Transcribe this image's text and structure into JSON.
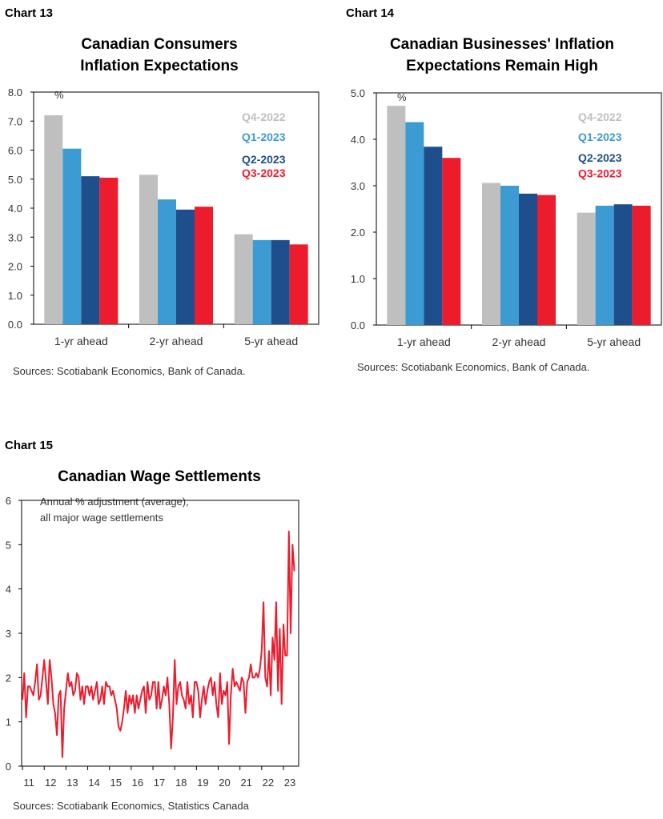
{
  "chart_data": [
    {
      "type": "bar",
      "chart_number": "Chart 13",
      "title_lines": [
        "Canadian Consumers",
        "Inflation Expectations"
      ],
      "unit": "%",
      "categories": [
        "1-yr ahead",
        "2-yr ahead",
        "5-yr ahead"
      ],
      "series": [
        {
          "name": "Q4-2022",
          "color": "#bfbfbf",
          "values": [
            7.2,
            5.15,
            3.1
          ]
        },
        {
          "name": "Q1-2023",
          "color": "#3d9bd4",
          "values": [
            6.05,
            4.3,
            2.9
          ]
        },
        {
          "name": "Q2-2023",
          "color": "#1f4e8c",
          "values": [
            5.1,
            3.95,
            2.9
          ]
        },
        {
          "name": "Q3-2023",
          "color": "#ec1c2d",
          "values": [
            5.05,
            4.05,
            2.75
          ]
        }
      ],
      "ylim": [
        0,
        8
      ],
      "yticks": [
        "0.0",
        "1.0",
        "2.0",
        "3.0",
        "4.0",
        "5.0",
        "6.0",
        "7.0",
        "8.0"
      ],
      "source": "Sources: Scotiabank Economics, Bank of Canada."
    },
    {
      "type": "bar",
      "chart_number": "Chart 14",
      "title_lines": [
        "Canadian Businesses' Inflation",
        "Expectations Remain High"
      ],
      "unit": "%",
      "categories": [
        "1-yr ahead",
        "2-yr ahead",
        "5-yr ahead"
      ],
      "series": [
        {
          "name": "Q4-2022",
          "color": "#bfbfbf",
          "values": [
            4.72,
            3.06,
            2.42
          ]
        },
        {
          "name": "Q1-2023",
          "color": "#3d9bd4",
          "values": [
            4.37,
            3.0,
            2.57
          ]
        },
        {
          "name": "Q2-2023",
          "color": "#1f4e8c",
          "values": [
            3.84,
            2.83,
            2.6
          ]
        },
        {
          "name": "Q3-2023",
          "color": "#ec1c2d",
          "values": [
            3.6,
            2.8,
            2.57
          ]
        }
      ],
      "ylim": [
        0,
        5
      ],
      "yticks": [
        "0.0",
        "1.0",
        "2.0",
        "3.0",
        "4.0",
        "5.0"
      ],
      "source": "Sources: Scotiabank Economics, Bank of Canada."
    },
    {
      "type": "line",
      "chart_number": "Chart 15",
      "title": "Canadian Wage Settlements",
      "note_lines": [
        "Annual % adjustment (average),",
        "all major wage settlements"
      ],
      "color": "#ec1c2d",
      "x_start": 2011.0,
      "x_step": 0.08333,
      "xlim": [
        2010.96,
        2023.7
      ],
      "xticks": [
        {
          "x": 2011,
          "label": "11"
        },
        {
          "x": 2012,
          "label": "12"
        },
        {
          "x": 2013,
          "label": "13"
        },
        {
          "x": 2014,
          "label": "14"
        },
        {
          "x": 2015,
          "label": "15"
        },
        {
          "x": 2016,
          "label": "16"
        },
        {
          "x": 2017,
          "label": "17"
        },
        {
          "x": 2018,
          "label": "18"
        },
        {
          "x": 2019,
          "label": "19"
        },
        {
          "x": 2020,
          "label": "20"
        },
        {
          "x": 2021,
          "label": "21"
        },
        {
          "x": 2022,
          "label": "22"
        },
        {
          "x": 2023,
          "label": "23"
        }
      ],
      "ylim": [
        0,
        6
      ],
      "yticks": [
        "0",
        "1",
        "2",
        "3",
        "4",
        "5",
        "6"
      ],
      "values": [
        1.5,
        2.1,
        1.1,
        1.8,
        1.8,
        1.7,
        1.6,
        1.9,
        2.3,
        1.5,
        1.6,
        2.0,
        2.4,
        1.9,
        1.4,
        2.4,
        2.0,
        1.4,
        1.2,
        0.7,
        1.6,
        1.7,
        0.2,
        1.3,
        1.7,
        2.1,
        1.8,
        1.9,
        1.6,
        1.7,
        2.1,
        2.0,
        1.5,
        1.8,
        1.4,
        1.8,
        1.8,
        1.6,
        1.8,
        1.5,
        1.7,
        1.9,
        1.4,
        1.5,
        1.8,
        1.4,
        1.9,
        1.8,
        1.8,
        1.6,
        1.7,
        1.5,
        1.3,
        0.9,
        0.8,
        1.0,
        1.3,
        1.7,
        1.2,
        1.6,
        1.4,
        1.6,
        1.2,
        1.6,
        1.3,
        1.5,
        1.7,
        1.8,
        1.2,
        1.9,
        1.5,
        1.6,
        1.9,
        1.9,
        1.3,
        1.9,
        1.3,
        1.5,
        1.8,
        1.6,
        2.0,
        1.4,
        0.4,
        1.1,
        2.4,
        1.4,
        1.8,
        1.9,
        1.6,
        1.5,
        1.3,
        1.9,
        1.4,
        1.6,
        1.1,
        1.9,
        1.9,
        1.7,
        1.1,
        1.5,
        1.8,
        1.4,
        1.7,
        1.9,
        2.0,
        1.6,
        1.9,
        1.4,
        1.1,
        2.1,
        1.4,
        1.7,
        1.6,
        1.9,
        0.5,
        1.6,
        2.2,
        1.8,
        1.9,
        1.8,
        1.7,
        2.0,
        1.9,
        1.2,
        1.9,
        2.0,
        2.3,
        2.0,
        2.0,
        2.1,
        2.0,
        2.2,
        2.6,
        3.7,
        2.0,
        1.8,
        2.6,
        1.6,
        2.9,
        2.4,
        3.7,
        1.7,
        3.1,
        1.4,
        3.2,
        2.5,
        2.5,
        5.3,
        3.0,
        5.0,
        4.4
      ],
      "source": "Sources: Scotiabank Economics, Statistics Canada"
    }
  ]
}
